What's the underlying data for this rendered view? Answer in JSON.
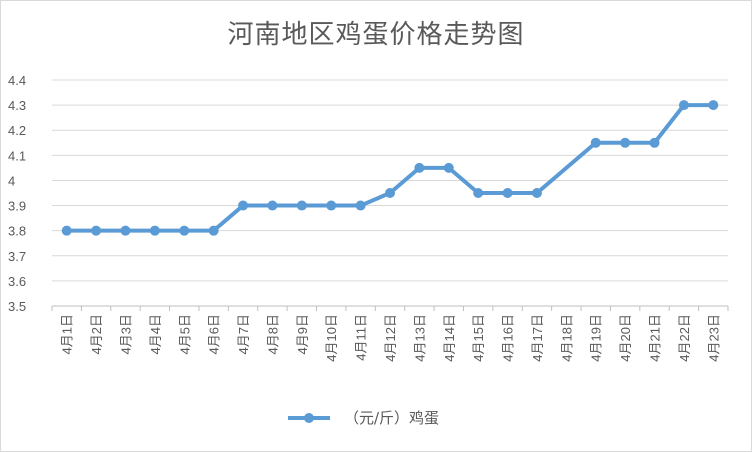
{
  "chart_data": {
    "type": "line",
    "title": "河南地区鸡蛋价格走势图",
    "categories": [
      "4月1日",
      "4月2日",
      "4月3日",
      "4月4日",
      "4月5日",
      "4月6日",
      "4月7日",
      "4月8日",
      "4月9日",
      "4月10日",
      "4月11日",
      "4月12日",
      "4月13日",
      "4月14日",
      "4月15日",
      "4月16日",
      "4月17日",
      "4月18日",
      "4月19日",
      "4月20日",
      "4月21日",
      "4月22日",
      "4月23日"
    ],
    "series": [
      {
        "name": "（元/斤）鸡蛋",
        "values": [
          3.8,
          3.8,
          3.8,
          3.8,
          3.8,
          3.8,
          3.9,
          3.9,
          3.9,
          3.9,
          3.9,
          3.95,
          4.05,
          4.05,
          3.95,
          3.95,
          3.95,
          null,
          4.15,
          4.15,
          4.15,
          4.3,
          4.3
        ]
      }
    ],
    "ylim": [
      3.5,
      4.4
    ],
    "yticks": [
      "3.5",
      "3.6",
      "3.7",
      "3.8",
      "3.9",
      "4",
      "4.1",
      "4.2",
      "4.3",
      "4.4"
    ],
    "grid": true,
    "legend_position": "bottom",
    "colors": {
      "series": "#5b9bd5",
      "grid": "#d9d9d9",
      "text": "#595959"
    }
  }
}
